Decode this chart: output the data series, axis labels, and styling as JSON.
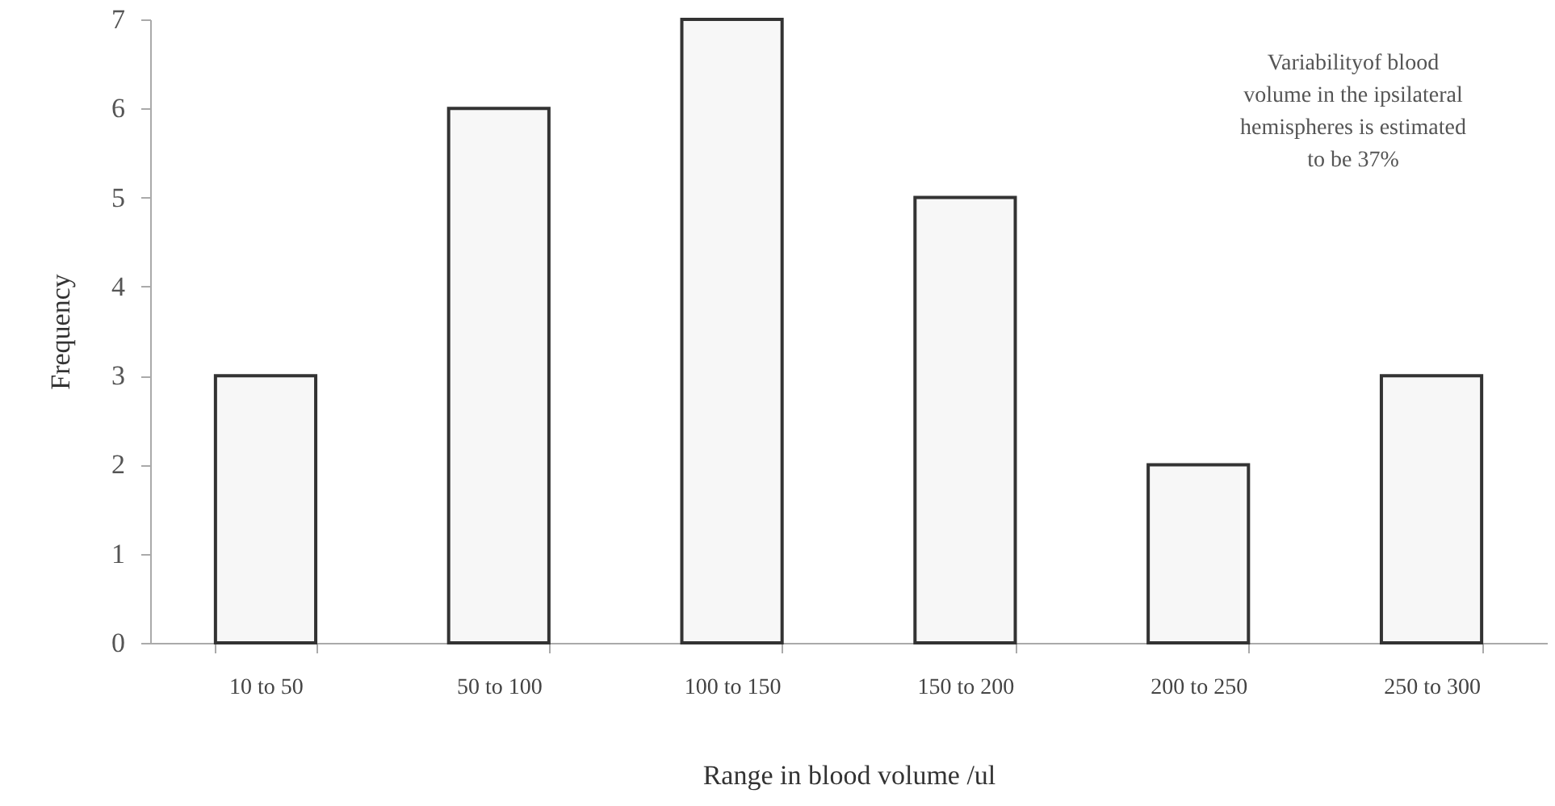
{
  "chart_data": {
    "type": "bar",
    "categories": [
      "10 to 50",
      "50 to 100",
      "100 to 150",
      "150 to 200",
      "200 to 250",
      "250 to 300"
    ],
    "values": [
      3,
      6,
      7,
      5,
      2,
      3
    ],
    "color": "#f7f7f7",
    "xlabel": "Range in blood volume /ul",
    "ylabel": "Frequency",
    "ylim": [
      0,
      7
    ],
    "yticks": [
      0,
      1,
      2,
      3,
      4,
      5,
      6,
      7
    ],
    "grid": false,
    "annotations": [
      "Variabilityof blood volume in the ipsilateral hemispheres is estimated to be 37%"
    ]
  }
}
